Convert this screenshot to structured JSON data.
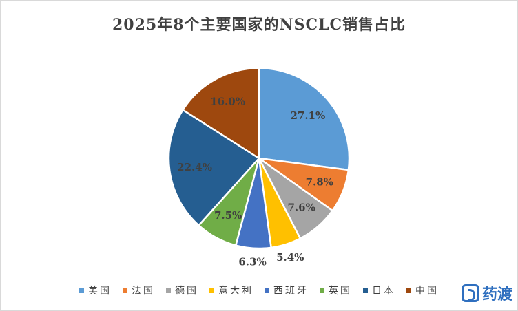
{
  "chart_data": {
    "type": "pie",
    "title": "2025年8个主要国家的NSCLC销售占比",
    "categories": [
      "美国",
      "法国",
      "德国",
      "意大利",
      "西班牙",
      "英国",
      "日本",
      "中国"
    ],
    "values": [
      27.1,
      7.8,
      7.6,
      5.4,
      6.3,
      7.5,
      22.4,
      16.0
    ],
    "data_labels": [
      "27.1%",
      "7.8%",
      "7.6%",
      "5.4%",
      "6.3%",
      "7.5%",
      "22.4%",
      "16.0%"
    ],
    "colors": [
      "#5b9bd5",
      "#ed7d31",
      "#a5a5a5",
      "#ffc000",
      "#4472c4",
      "#70ad47",
      "#255e91",
      "#9e480e"
    ],
    "label_colors": [
      "#404040",
      "#404040",
      "#404040",
      "#404040",
      "#404040",
      "#404040",
      "#404040",
      "#404040"
    ],
    "start_angle_deg": 0,
    "direction": "clockwise",
    "legend_position": "bottom"
  },
  "watermark": {
    "text": "药渡",
    "icon": "d-logo-icon"
  }
}
